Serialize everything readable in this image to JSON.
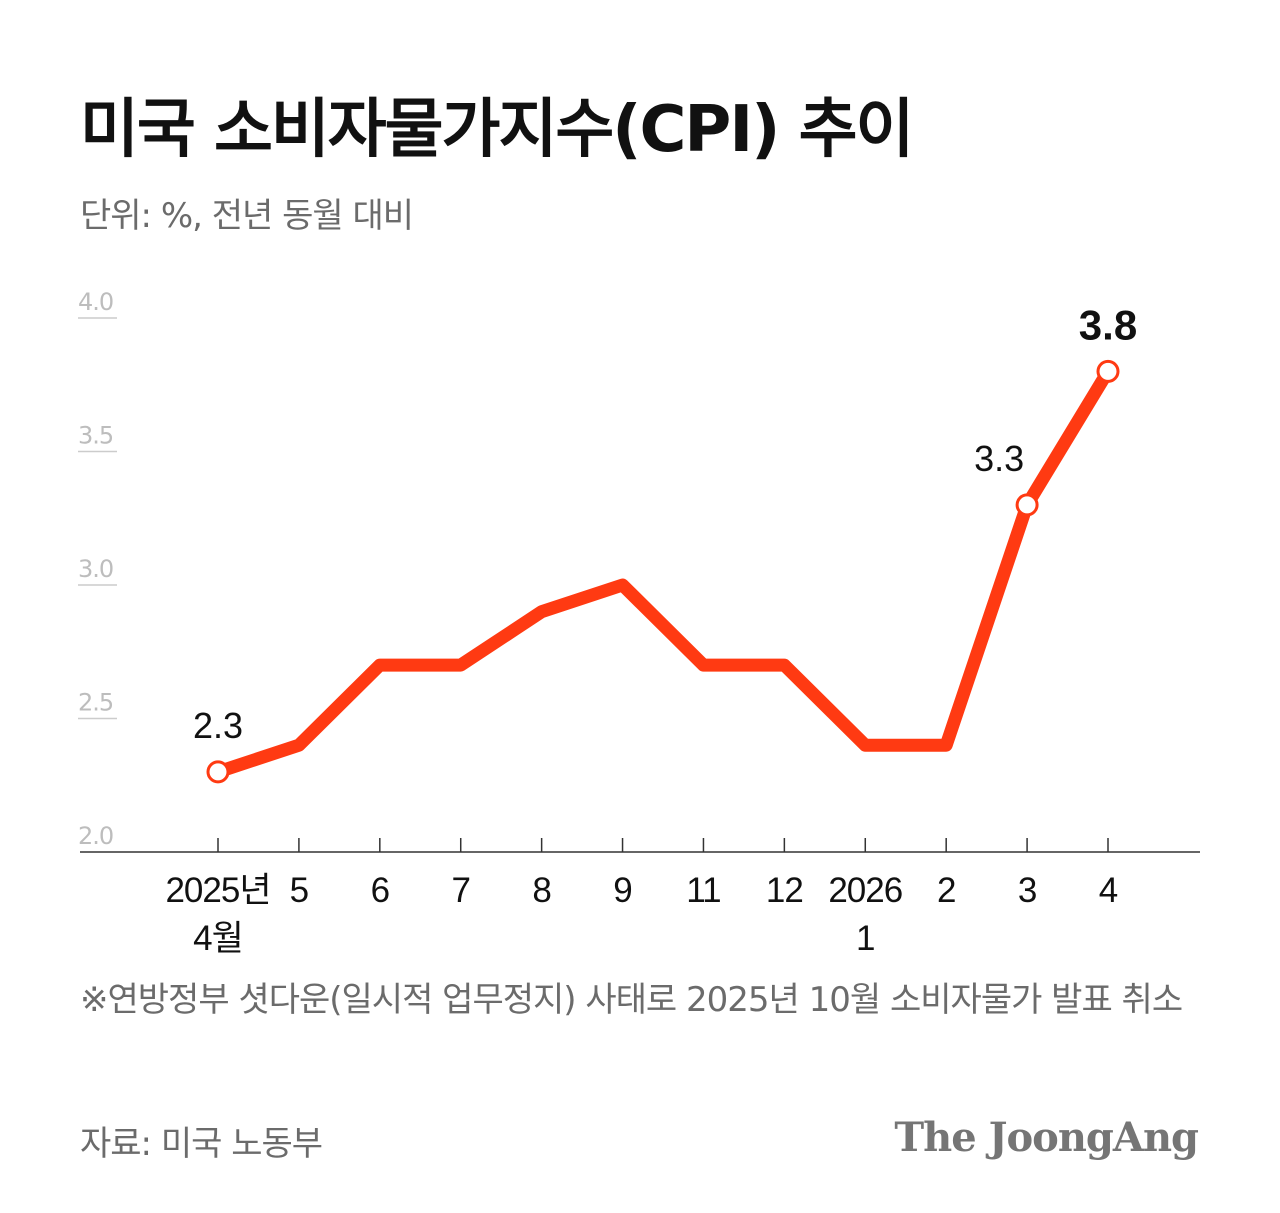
{
  "header": {
    "title": "미국 소비자물가지수(CPI) 추이",
    "subtitle": "단위: %, 전년 동월 대비"
  },
  "chart_data": {
    "type": "line",
    "categories": [
      [
        "2025년",
        "4월"
      ],
      [
        "5"
      ],
      [
        "6"
      ],
      [
        "7"
      ],
      [
        "8"
      ],
      [
        "9"
      ],
      [
        "11"
      ],
      [
        "12"
      ],
      [
        "2026",
        "1"
      ],
      [
        "2"
      ],
      [
        "3"
      ],
      [
        "4"
      ]
    ],
    "values": [
      2.3,
      2.4,
      2.7,
      2.7,
      2.9,
      3.0,
      2.7,
      2.7,
      2.4,
      2.4,
      3.3,
      3.8
    ],
    "ylim": [
      2.0,
      4.0
    ],
    "yticks": [
      "2.0",
      "2.5",
      "3.0",
      "3.5",
      "4.0"
    ],
    "data_labels": [
      {
        "index": 0,
        "text": "2.3"
      },
      {
        "index": 10,
        "text": "3.3"
      },
      {
        "index": 11,
        "text": "3.8"
      }
    ],
    "line_color": "#ff3a12",
    "grid": false,
    "title": "",
    "xlabel": "",
    "ylabel": ""
  },
  "footer": {
    "note": "※연방정부 셧다운(일시적 업무정지) 사태로 2025년 10월 소비자물가 발표 취소",
    "source": "자료: 미국 노동부",
    "logo": "The JoongAng"
  }
}
